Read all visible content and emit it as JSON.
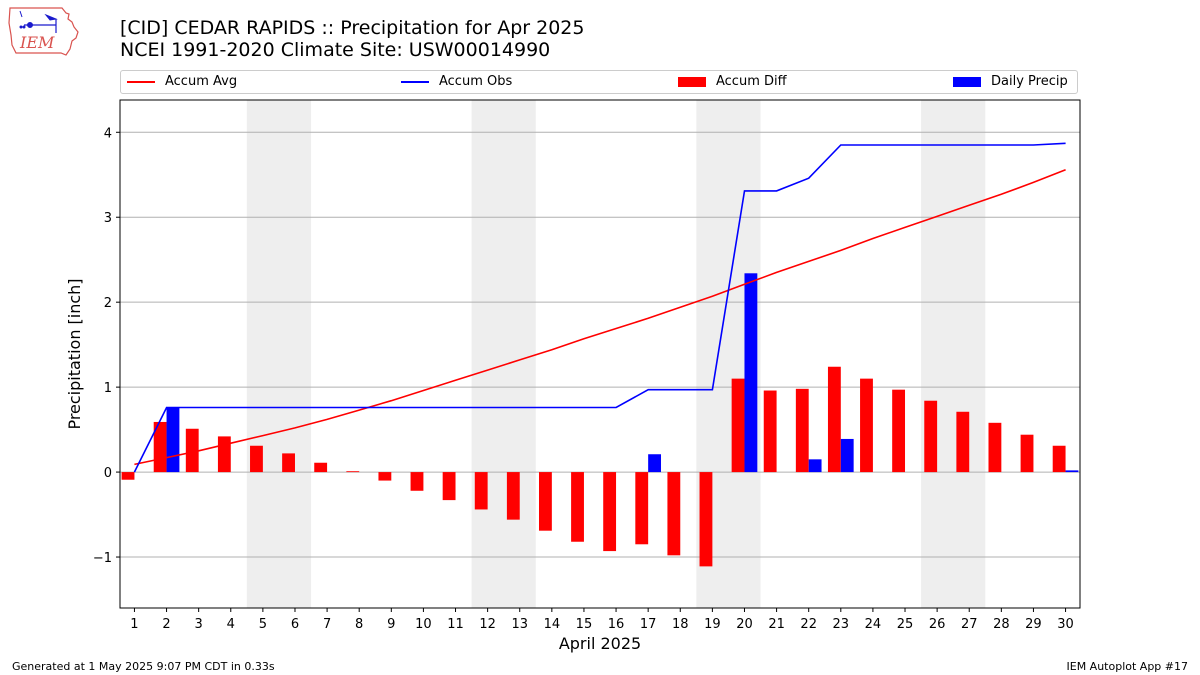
{
  "title_line1": "[CID] CEDAR RAPIDS :: Precipitation for Apr 2025",
  "title_line2": "NCEI 1991-2020 Climate Site: USW00014990",
  "logo_text": "IEM",
  "footer_left": "Generated at 1 May 2025 9:07 PM CDT in 0.33s",
  "footer_right": "IEM Autoplot App #17",
  "legend": [
    {
      "label": "Accum Avg",
      "color": "#ff0000",
      "kind": "line"
    },
    {
      "label": "Accum Obs",
      "color": "#0000ff",
      "kind": "line"
    },
    {
      "label": "Accum Diff",
      "color": "#ff0000",
      "kind": "bar"
    },
    {
      "label": "Daily Precip",
      "color": "#0000ff",
      "kind": "bar"
    }
  ],
  "chart_data": {
    "type": "bar",
    "xlabel": "April 2025",
    "ylabel": "Precipitation [inch]",
    "ylim": [
      -1.6,
      4.38
    ],
    "yticks": [
      -1,
      0,
      1,
      2,
      3,
      4
    ],
    "grid": true,
    "legend_position": "top",
    "weekend_shading": [
      [
        5,
        6
      ],
      [
        12,
        13
      ],
      [
        19,
        20
      ],
      [
        26,
        27
      ]
    ],
    "x": [
      1,
      2,
      3,
      4,
      5,
      6,
      7,
      8,
      9,
      10,
      11,
      12,
      13,
      14,
      15,
      16,
      17,
      18,
      19,
      20,
      21,
      22,
      23,
      24,
      25,
      26,
      27,
      28,
      29,
      30
    ],
    "series": [
      {
        "name": "Accum Avg",
        "kind": "line",
        "color": "#ff0000",
        "values": [
          0.09,
          0.17,
          0.25,
          0.34,
          0.43,
          0.52,
          0.62,
          0.73,
          0.84,
          0.96,
          1.08,
          1.2,
          1.32,
          1.44,
          1.57,
          1.69,
          1.81,
          1.94,
          2.07,
          2.21,
          2.35,
          2.48,
          2.61,
          2.75,
          2.88,
          3.01,
          3.14,
          3.27,
          3.41,
          3.56
        ]
      },
      {
        "name": "Accum Obs",
        "kind": "line",
        "color": "#0000ff",
        "values": [
          0.0,
          0.76,
          0.76,
          0.76,
          0.76,
          0.76,
          0.76,
          0.76,
          0.76,
          0.76,
          0.76,
          0.76,
          0.76,
          0.76,
          0.76,
          0.76,
          0.97,
          0.97,
          0.97,
          3.31,
          3.31,
          3.46,
          3.85,
          3.85,
          3.85,
          3.85,
          3.85,
          3.85,
          3.85,
          3.87
        ]
      },
      {
        "name": "Accum Diff",
        "kind": "bar",
        "color": "#ff0000",
        "values": [
          -0.09,
          0.59,
          0.51,
          0.42,
          0.31,
          0.22,
          0.11,
          0.01,
          -0.1,
          -0.22,
          -0.33,
          -0.44,
          -0.56,
          -0.69,
          -0.82,
          -0.93,
          -0.85,
          -0.98,
          -1.11,
          1.1,
          0.96,
          0.98,
          1.24,
          1.1,
          0.97,
          0.84,
          0.71,
          0.58,
          0.44,
          0.31
        ]
      },
      {
        "name": "Daily Precip",
        "kind": "bar",
        "color": "#0000ff",
        "values": [
          0.0,
          0.76,
          0,
          0,
          0,
          0,
          0,
          0,
          0,
          0,
          0,
          0,
          0,
          0,
          0,
          0,
          0.21,
          0,
          0,
          2.34,
          0,
          0.15,
          0.39,
          0,
          0,
          0,
          0,
          0,
          0,
          0.02
        ]
      }
    ]
  }
}
